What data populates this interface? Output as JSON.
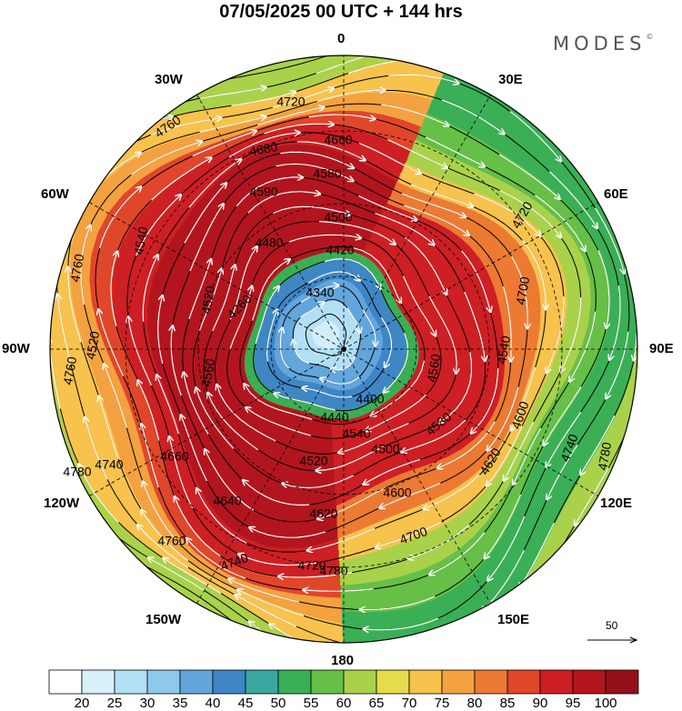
{
  "title": "07/05/2025  00 UTC  + 144 hrs",
  "brand": "MODES",
  "brand_mark": "©",
  "longitude_labels": {
    "lon0": "0",
    "lon30e": "30E",
    "lon60e": "60E",
    "lon90e": "90E",
    "lon120e": "120E",
    "lon150e": "150E",
    "lon180": "180",
    "lon150w": "150W",
    "lon120w": "120W",
    "lon90w": "90W",
    "lon60w": "60W",
    "lon30w": "30W"
  },
  "contour_labels": [
    "4760",
    "4720",
    "4680",
    "4660",
    "4580",
    "4590",
    "4500",
    "4480",
    "4420",
    "4340",
    "4260",
    "4400",
    "4440",
    "4540",
    "4500",
    "4520",
    "4600",
    "4620",
    "4640",
    "4660",
    "4700",
    "4740",
    "4780",
    "4760",
    "4720",
    "4740",
    "4780",
    "4760",
    "4760",
    "4700",
    "4720",
    "4740",
    "4780",
    "4520",
    "4540",
    "4560",
    "4580",
    "4600",
    "4620",
    "4560",
    "4540",
    "4520"
  ],
  "vector_scale": {
    "label": "50"
  },
  "colorbar": {
    "labels": [
      "20",
      "25",
      "30",
      "35",
      "40",
      "45",
      "50",
      "55",
      "60",
      "65",
      "70",
      "75",
      "80",
      "85",
      "90",
      "95",
      "100"
    ],
    "colors": [
      "#ffffff",
      "#d7f0fb",
      "#b4e1f6",
      "#8ec8ea",
      "#62a6dc",
      "#3f86c6",
      "#3aa7a0",
      "#3aaf55",
      "#66bf46",
      "#a9d24a",
      "#e5dc4c",
      "#f7c34d",
      "#f4a140",
      "#ec7a32",
      "#e0462a",
      "#cd1f24",
      "#b3151e",
      "#93101a"
    ]
  },
  "icons": {
    "vector_arrow": "arrow-right-icon"
  }
}
